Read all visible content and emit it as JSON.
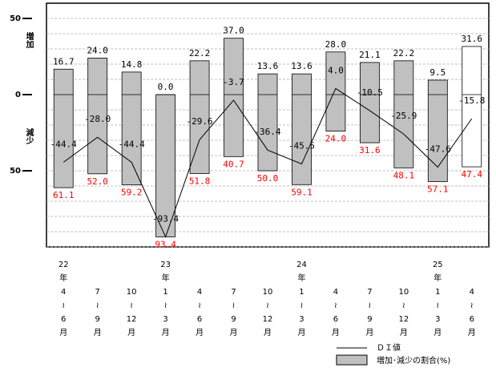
{
  "chart_data": {
    "type": "range-bar-line",
    "y_side_labels": [
      "増加",
      "減少"
    ],
    "categories": [
      [
        "22",
        "年",
        "4",
        "≀",
        "6",
        "月"
      ],
      [
        "7",
        "≀",
        "9",
        "月"
      ],
      [
        "10",
        "≀",
        "12",
        "月"
      ],
      [
        "23",
        "年",
        "1",
        "≀",
        "3",
        "月"
      ],
      [
        "4",
        "≀",
        "6",
        "月"
      ],
      [
        "7",
        "≀",
        "9",
        "月"
      ],
      [
        "10",
        "≀",
        "12",
        "月"
      ],
      [
        "24",
        "年",
        "1",
        "≀",
        "3",
        "月"
      ],
      [
        "4",
        "≀",
        "6",
        "月"
      ],
      [
        "7",
        "≀",
        "9",
        "月"
      ],
      [
        "10",
        "≀",
        "12",
        "月"
      ],
      [
        "25",
        "年",
        "1",
        "≀",
        "3",
        "月"
      ],
      [
        "4",
        "≀",
        "6",
        "月"
      ]
    ],
    "bars": {
      "name": "増加･減少の割合(%)",
      "color": "#c0c0c0",
      "bar_colors": [
        "#c0c0c0",
        "#c0c0c0",
        "#c0c0c0",
        "#c0c0c0",
        "#c0c0c0",
        "#c0c0c0",
        "#c0c0c0",
        "#c0c0c0",
        "#c0c0c0",
        "#c0c0c0",
        "#c0c0c0",
        "#c0c0c0",
        "#ffffff"
      ],
      "increase": [
        16.7,
        24.0,
        14.8,
        0.0,
        22.2,
        37.0,
        13.6,
        13.6,
        28.0,
        21.1,
        22.2,
        9.5,
        31.6
      ],
      "increase_labels": [
        "16.7",
        "24.0",
        "14.8",
        "0.0",
        "22.2",
        "37.0",
        "13.6",
        "13.6",
        "28.0",
        "21.1",
        "22.2",
        "9.5",
        "31.6"
      ],
      "decrease": [
        61.1,
        52.0,
        59.2,
        93.4,
        51.8,
        40.7,
        50.0,
        59.1,
        24.0,
        31.6,
        48.1,
        57.1,
        47.4
      ],
      "decrease_labels": [
        "61.1",
        "52.0",
        "59.2",
        "93.4",
        "51.8",
        "40.7",
        "50.0",
        "59.1",
        "24.0",
        "31.6",
        "48.1",
        "57.1",
        "47.4"
      ],
      "decrease_label_color": "#ff0000"
    },
    "line": {
      "name": "ＤＩ値",
      "color": "#000000",
      "values": [
        -44.4,
        -28.0,
        -44.4,
        -93.4,
        -29.6,
        -3.7,
        -36.4,
        -45.5,
        4.0,
        -10.5,
        -25.9,
        -47.6,
        -15.8
      ],
      "value_labels": [
        "-44.4",
        "-28.0",
        "-44.4",
        "-93.4",
        "-29.6",
        "-3.7",
        "-36.4",
        "-45.5",
        "4.0",
        "-10.5",
        "-25.9",
        "-47.6",
        "-15.8"
      ]
    },
    "ylim": [
      -100,
      60
    ],
    "yticks": [
      50,
      0,
      {
        "value": -50,
        "label": "50"
      }
    ],
    "minor_yticks": [
      -100,
      -90,
      -80,
      -70,
      -60,
      -50,
      -40,
      -30,
      -20,
      -10,
      10,
      20,
      30,
      40,
      50
    ],
    "grid": true
  }
}
